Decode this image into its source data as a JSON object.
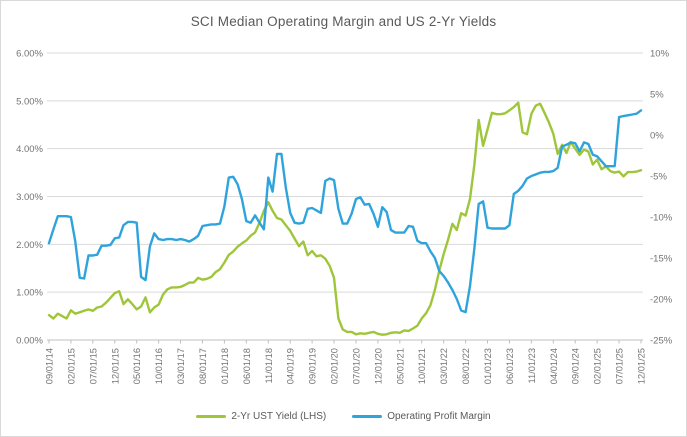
{
  "chart_data": {
    "type": "line",
    "title": "SCI Median Operating Margin and US 2-Yr Yields",
    "x_start": "09/01/14",
    "x_interval": "monthly",
    "n_points": 136,
    "x_tick_labels": [
      "09/01/14",
      "02/01/15",
      "07/01/15",
      "12/01/15",
      "05/01/16",
      "10/01/16",
      "03/01/17",
      "08/01/17",
      "01/01/18",
      "06/01/18",
      "11/01/18",
      "04/01/19",
      "09/01/19",
      "02/01/20",
      "07/01/20",
      "12/01/20",
      "05/01/21",
      "10/01/21",
      "03/01/22",
      "08/01/22",
      "01/01/23",
      "06/01/23",
      "11/01/23",
      "04/01/24",
      "09/01/24",
      "02/01/25",
      "07/01/25",
      "12/01/25"
    ],
    "x_tick_every_n_points": 5,
    "left_axis": {
      "tick_labels_top_to_bottom": [
        "6.00%",
        "5.00%",
        "4.00%",
        "3.00%",
        "2.00%",
        "1.00%",
        "0.00%"
      ],
      "range": [
        0,
        6
      ],
      "unit": "%"
    },
    "right_axis": {
      "tick_labels_top_to_bottom": [
        "10%",
        "5%",
        "0%",
        "-5%",
        "-10%",
        "-15%",
        "-20%",
        "-25%"
      ],
      "range": [
        -25,
        10
      ],
      "unit": "%"
    },
    "grid": "horizontal-only",
    "legend_position": "bottom-center",
    "colors": {
      "grid": "#d9d9d9",
      "axis_line": "#bfbfbf",
      "tick_text": "#737373",
      "title_text": "#595959"
    },
    "series": [
      {
        "name": "2-Yr UST Yield (LHS)",
        "axis": "left",
        "color": "#9fc63b",
        "values": [
          0.52,
          0.45,
          0.55,
          0.5,
          0.45,
          0.62,
          0.55,
          0.58,
          0.61,
          0.64,
          0.61,
          0.68,
          0.7,
          0.78,
          0.88,
          0.98,
          1.02,
          0.75,
          0.85,
          0.75,
          0.64,
          0.7,
          0.89,
          0.58,
          0.68,
          0.74,
          0.95,
          1.06,
          1.1,
          1.1,
          1.11,
          1.15,
          1.2,
          1.2,
          1.3,
          1.26,
          1.28,
          1.32,
          1.42,
          1.48,
          1.62,
          1.78,
          1.85,
          1.95,
          2.02,
          2.08,
          2.18,
          2.25,
          2.45,
          2.7,
          2.88,
          2.7,
          2.55,
          2.52,
          2.4,
          2.28,
          2.12,
          1.96,
          2.06,
          1.77,
          1.86,
          1.75,
          1.77,
          1.7,
          1.55,
          1.3,
          0.45,
          0.22,
          0.17,
          0.17,
          0.12,
          0.14,
          0.13,
          0.15,
          0.17,
          0.13,
          0.11,
          0.12,
          0.15,
          0.16,
          0.15,
          0.2,
          0.19,
          0.24,
          0.3,
          0.45,
          0.56,
          0.73,
          1.05,
          1.45,
          1.8,
          2.1,
          2.43,
          2.3,
          2.65,
          2.6,
          2.95,
          3.67,
          4.6,
          4.06,
          4.4,
          4.75,
          4.72,
          4.72,
          4.74,
          4.8,
          4.87,
          4.96,
          4.34,
          4.3,
          4.73,
          4.9,
          4.94,
          4.75,
          4.55,
          4.31,
          3.89,
          4.08,
          3.91,
          4.14,
          4.0,
          3.87,
          3.98,
          3.94,
          3.67,
          3.77,
          3.57,
          3.63,
          3.53,
          3.5,
          3.52,
          3.42,
          3.51,
          3.51,
          3.52,
          3.55
        ]
      },
      {
        "name": "Operating Profit Margin",
        "axis": "right",
        "color": "#2fa3dc",
        "values": [
          -13.2,
          -11.5,
          -9.9,
          -9.9,
          -9.9,
          -10.0,
          -13.0,
          -17.4,
          -17.5,
          -14.7,
          -14.7,
          -14.6,
          -13.5,
          -13.5,
          -13.4,
          -12.6,
          -12.5,
          -11.0,
          -10.6,
          -10.6,
          -10.7,
          -17.3,
          -17.7,
          -13.6,
          -12.0,
          -12.7,
          -12.8,
          -12.7,
          -12.7,
          -12.8,
          -12.7,
          -12.8,
          -13.0,
          -12.7,
          -12.3,
          -11.1,
          -11.0,
          -10.9,
          -10.9,
          -10.8,
          -8.7,
          -5.2,
          -5.1,
          -6.0,
          -7.8,
          -10.5,
          -10.7,
          -9.8,
          -10.7,
          -11.5,
          -5.2,
          -6.9,
          -2.3,
          -2.3,
          -6.4,
          -9.5,
          -10.7,
          -10.8,
          -10.7,
          -9.0,
          -8.9,
          -9.2,
          -9.5,
          -5.6,
          -5.3,
          -5.5,
          -9.0,
          -10.8,
          -10.8,
          -9.6,
          -7.8,
          -7.6,
          -8.5,
          -8.4,
          -9.6,
          -11.2,
          -8.8,
          -9.4,
          -11.6,
          -11.9,
          -11.9,
          -11.9,
          -11.1,
          -11.2,
          -12.9,
          -13.2,
          -13.2,
          -14.2,
          -15.0,
          -16.6,
          -17.2,
          -18.0,
          -18.9,
          -20.0,
          -21.4,
          -21.6,
          -18.4,
          -13.8,
          -8.4,
          -8.1,
          -11.3,
          -11.4,
          -11.4,
          -11.4,
          -11.4,
          -11.0,
          -7.2,
          -6.8,
          -6.2,
          -5.3,
          -5.0,
          -4.8,
          -4.6,
          -4.5,
          -4.5,
          -4.4,
          -4.0,
          -1.4,
          -1.2,
          -0.9,
          -1.0,
          -2.0,
          -0.9,
          -1.1,
          -2.4,
          -2.6,
          -3.2,
          -3.8,
          -3.8,
          -3.8,
          2.2,
          2.3,
          2.4,
          2.5,
          2.6,
          3.0
        ]
      }
    ]
  }
}
